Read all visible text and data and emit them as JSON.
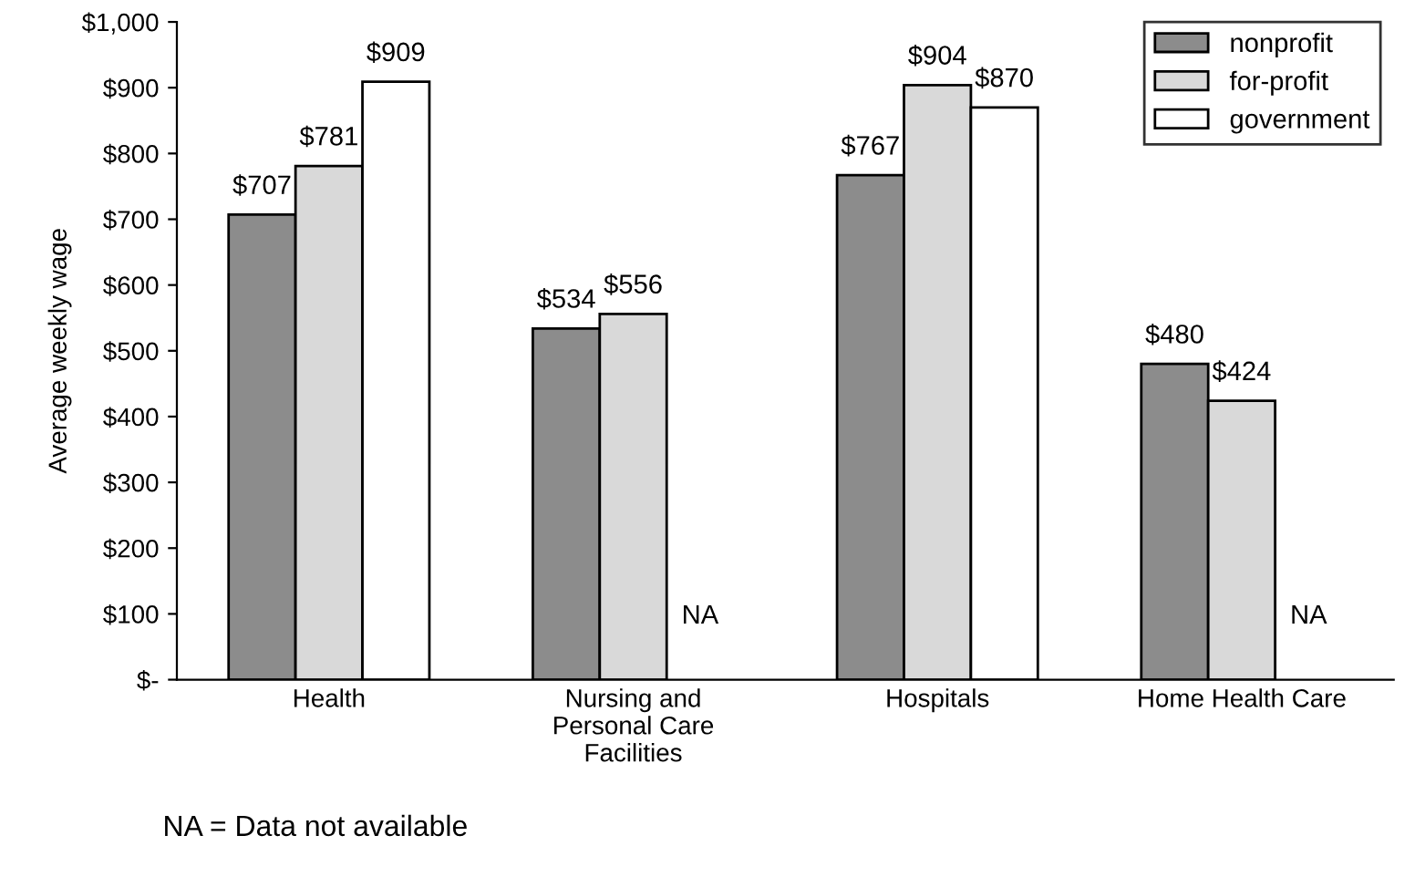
{
  "chart_data": {
    "type": "bar",
    "ylabel": "Average weekly wage",
    "categories": [
      "Health",
      "Nursing and\nPersonal Care\nFacilities",
      "Hospitals",
      "Home Health Care"
    ],
    "series": [
      {
        "name": "nonprofit",
        "color": "#8c8c8c",
        "values": [
          707,
          534,
          767,
          480
        ],
        "value_labels": [
          "$707",
          "$534",
          "$767",
          "$480"
        ]
      },
      {
        "name": "for-profit",
        "color": "#d9d9d9",
        "values": [
          781,
          556,
          904,
          424
        ],
        "value_labels": [
          "$781",
          "$556",
          "$904",
          "$424"
        ]
      },
      {
        "name": "government",
        "color": "#ffffff",
        "values": [
          909,
          null,
          870,
          null
        ],
        "value_labels": [
          "$909",
          "NA",
          "$870",
          "NA"
        ]
      }
    ],
    "ylim": [
      0,
      1000
    ],
    "yticks": [
      {
        "value": 0,
        "label": "$-"
      },
      {
        "value": 100,
        "label": "$100"
      },
      {
        "value": 200,
        "label": "$200"
      },
      {
        "value": 300,
        "label": "$300"
      },
      {
        "value": 400,
        "label": "$400"
      },
      {
        "value": 500,
        "label": "$500"
      },
      {
        "value": 600,
        "label": "$600"
      },
      {
        "value": 700,
        "label": "$700"
      },
      {
        "value": 800,
        "label": "$800"
      },
      {
        "value": 900,
        "label": "$900"
      },
      {
        "value": 1000,
        "label": "$1,000"
      }
    ],
    "legend": "top right",
    "grid": false,
    "annotations": [
      "NA = Data not available"
    ]
  }
}
